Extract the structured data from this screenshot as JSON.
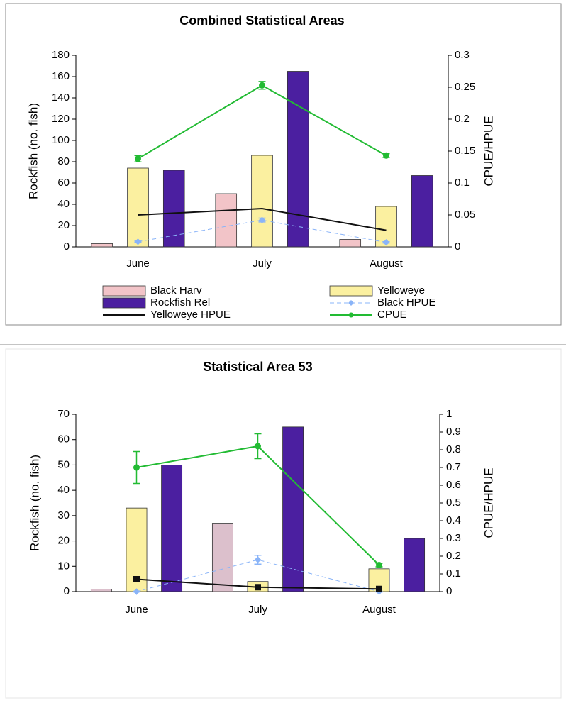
{
  "chart_data": [
    {
      "type": "bar",
      "title": "Combined Statistical Areas",
      "y_label": "Rockfish (no. fish)",
      "y2_label": "CPUE/HPUE",
      "categories": [
        "June",
        "July",
        "August"
      ],
      "ylim": [
        0,
        180
      ],
      "yticks": [
        0,
        20,
        40,
        60,
        80,
        100,
        120,
        140,
        160,
        180
      ],
      "y2lim": [
        0,
        0.3
      ],
      "y2ticks": [
        0,
        0.05,
        0.1,
        0.15,
        0.2,
        0.25,
        0.3
      ],
      "legend": "bottom",
      "series": [
        {
          "name": "Black Harv",
          "type": "bar",
          "color": "#f2c4c8",
          "values": [
            3,
            50,
            7
          ]
        },
        {
          "name": "Yelloweye",
          "type": "bar",
          "color": "#fbf0a0",
          "values": [
            74,
            86,
            38
          ]
        },
        {
          "name": "Rockfish Rel",
          "type": "bar",
          "color": "#4b1fa0",
          "values": [
            72,
            165,
            67
          ]
        },
        {
          "name": "Black HPUE",
          "type": "line",
          "axis": "y2",
          "color": "#8ab4f8",
          "dash": true,
          "marker": "diamond",
          "values": [
            0.008,
            0.042,
            0.007
          ],
          "errors": [
            0.001,
            0.003,
            0.001
          ]
        },
        {
          "name": "Yelloweye HPUE",
          "type": "line",
          "axis": "y2",
          "color": "#111111",
          "marker": "none",
          "values": [
            0.05,
            0.06,
            0.026
          ]
        },
        {
          "name": "CPUE",
          "type": "line",
          "axis": "y2",
          "color": "#22bb33",
          "marker": "circle",
          "values": [
            0.138,
            0.253,
            0.143
          ],
          "errors": [
            0.005,
            0.006,
            0.003
          ]
        }
      ]
    },
    {
      "type": "bar",
      "title": "Statistical Area 53",
      "y_label": "Rockfish (no. fish)",
      "y2_label": "CPUE/HPUE",
      "categories": [
        "June",
        "July",
        "August"
      ],
      "ylim": [
        0,
        70
      ],
      "yticks": [
        0,
        10,
        20,
        30,
        40,
        50,
        60,
        70
      ],
      "y2lim": [
        0,
        1
      ],
      "y2ticks": [
        0,
        0.1,
        0.2,
        0.3,
        0.4,
        0.5,
        0.6,
        0.7,
        0.8,
        0.9,
        1
      ],
      "series": [
        {
          "type": "bar",
          "color": "#dcc0cc",
          "values": [
            1,
            27,
            0
          ]
        },
        {
          "type": "bar",
          "color": "#fbf0a0",
          "values": [
            33,
            4,
            9
          ]
        },
        {
          "type": "bar",
          "color": "#4b1fa0",
          "values": [
            50,
            65,
            21
          ]
        },
        {
          "type": "line",
          "axis": "y2",
          "color": "#8ab4f8",
          "dash": true,
          "marker": "diamond",
          "values": [
            0,
            0.18,
            0
          ],
          "errors": [
            0.002,
            0.025,
            0.002
          ]
        },
        {
          "type": "line",
          "axis": "y2",
          "color": "#111111",
          "marker": "square",
          "values": [
            0.07,
            0.025,
            0.015
          ]
        },
        {
          "type": "line",
          "axis": "y2",
          "color": "#22bb33",
          "marker": "circle",
          "values": [
            0.7,
            0.82,
            0.15
          ],
          "errors": [
            0.09,
            0.07,
            0.01
          ]
        }
      ]
    }
  ]
}
